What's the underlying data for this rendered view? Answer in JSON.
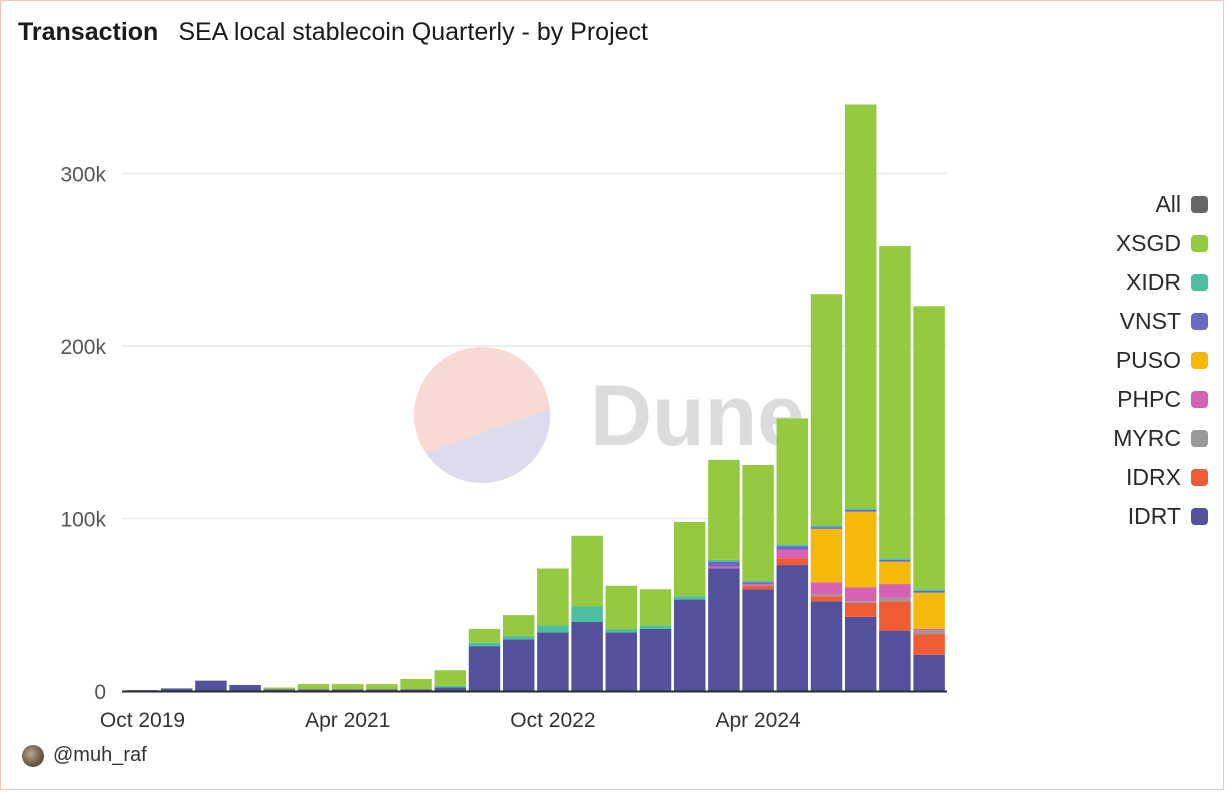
{
  "header": {
    "title": "Transaction",
    "subtitle": "SEA local stablecoin Quarterly - by Project"
  },
  "watermark": {
    "text": "Dune"
  },
  "author": {
    "handle": "@muh_raf"
  },
  "legend": {
    "items": [
      {
        "label": "All",
        "color": "#666666"
      },
      {
        "label": "XSGD",
        "color": "#95c940"
      },
      {
        "label": "XIDR",
        "color": "#4bbf9f"
      },
      {
        "label": "VNST",
        "color": "#6a6ac4"
      },
      {
        "label": "PUSO",
        "color": "#f5b90b"
      },
      {
        "label": "PHPC",
        "color": "#d761b5"
      },
      {
        "label": "MYRC",
        "color": "#999999"
      },
      {
        "label": "IDRX",
        "color": "#ef5b35"
      },
      {
        "label": "IDRT",
        "color": "#53519b"
      }
    ]
  },
  "chart_data": {
    "type": "bar",
    "stacked": true,
    "title": "SEA local stablecoin Quarterly - by Project",
    "ylim": [
      0,
      345000
    ],
    "y_ticks": [
      {
        "value": 0,
        "label": "0"
      },
      {
        "value": 100000,
        "label": "100k"
      },
      {
        "value": 200000,
        "label": "200k"
      },
      {
        "value": 300000,
        "label": "300k"
      }
    ],
    "x_ticks": [
      {
        "index": 0,
        "label": "Oct 2019"
      },
      {
        "index": 6,
        "label": "Apr 2021"
      },
      {
        "index": 12,
        "label": "Oct 2022"
      },
      {
        "index": 18,
        "label": "Apr 2024"
      }
    ],
    "grid": true,
    "legend_position": "right",
    "categories": [
      "2019-Q4",
      "2020-Q1",
      "2020-Q2",
      "2020-Q3",
      "2020-Q4",
      "2021-Q1",
      "2021-Q2",
      "2021-Q3",
      "2021-Q4",
      "2022-Q1",
      "2022-Q2",
      "2022-Q3",
      "2022-Q4",
      "2023-Q1",
      "2023-Q2",
      "2023-Q3",
      "2023-Q4",
      "2024-Q1",
      "2024-Q2",
      "2024-Q3",
      "2024-Q4",
      "2025-Q1",
      "2025-Q2",
      "2025-Q3",
      "2025-Q4"
    ],
    "series": [
      {
        "name": "IDRT",
        "color": "#53519b",
        "values": [
          500,
          1500,
          6000,
          3500,
          1000,
          1000,
          1000,
          1000,
          1000,
          2000,
          26000,
          30000,
          34000,
          40000,
          34000,
          36000,
          53000,
          71000,
          59000,
          73000,
          52000,
          43000,
          35000,
          21000,
          0
        ]
      },
      {
        "name": "IDRX",
        "color": "#ef5b35",
        "values": [
          0,
          0,
          0,
          0,
          0,
          0,
          0,
          0,
          0,
          0,
          0,
          0,
          0,
          0,
          0,
          0,
          0,
          0,
          2000,
          4000,
          3000,
          8000,
          17000,
          12000,
          0
        ]
      },
      {
        "name": "MYRC",
        "color": "#999999",
        "values": [
          0,
          0,
          0,
          0,
          0,
          0,
          0,
          0,
          0,
          0,
          0,
          0,
          0,
          0,
          0,
          0,
          0,
          0,
          0,
          0,
          1000,
          1000,
          2000,
          2000,
          0
        ]
      },
      {
        "name": "PHPC",
        "color": "#d761b5",
        "values": [
          0,
          0,
          0,
          0,
          0,
          0,
          0,
          0,
          0,
          0,
          0,
          0,
          0,
          0,
          0,
          0,
          0,
          1000,
          1000,
          5000,
          7000,
          8000,
          8000,
          1000,
          0
        ]
      },
      {
        "name": "PUSO",
        "color": "#f5b90b",
        "values": [
          0,
          0,
          0,
          0,
          0,
          0,
          0,
          0,
          0,
          0,
          0,
          0,
          0,
          0,
          0,
          0,
          0,
          0,
          0,
          0,
          31000,
          44000,
          13000,
          21000,
          0
        ]
      },
      {
        "name": "VNST",
        "color": "#6a6ac4",
        "values": [
          0,
          0,
          0,
          0,
          0,
          0,
          0,
          0,
          0,
          0,
          0,
          0,
          0,
          0,
          0,
          0,
          0,
          3000,
          1000,
          2000,
          1000,
          1000,
          1000,
          1000,
          0
        ]
      },
      {
        "name": "XIDR",
        "color": "#4bbf9f",
        "values": [
          0,
          0,
          0,
          0,
          0,
          0,
          0,
          0,
          0,
          1000,
          2000,
          2000,
          4000,
          9000,
          2000,
          2000,
          2000,
          1000,
          1000,
          1000,
          1000,
          1000,
          1000,
          1000,
          0
        ]
      },
      {
        "name": "XSGD",
        "color": "#95c940",
        "values": [
          0,
          0,
          0,
          0,
          1000,
          3000,
          3000,
          3000,
          6000,
          9000,
          8000,
          12000,
          33000,
          41000,
          25000,
          21000,
          43000,
          58000,
          67000,
          73000,
          134000,
          234000,
          181000,
          164000,
          0
        ]
      }
    ]
  }
}
